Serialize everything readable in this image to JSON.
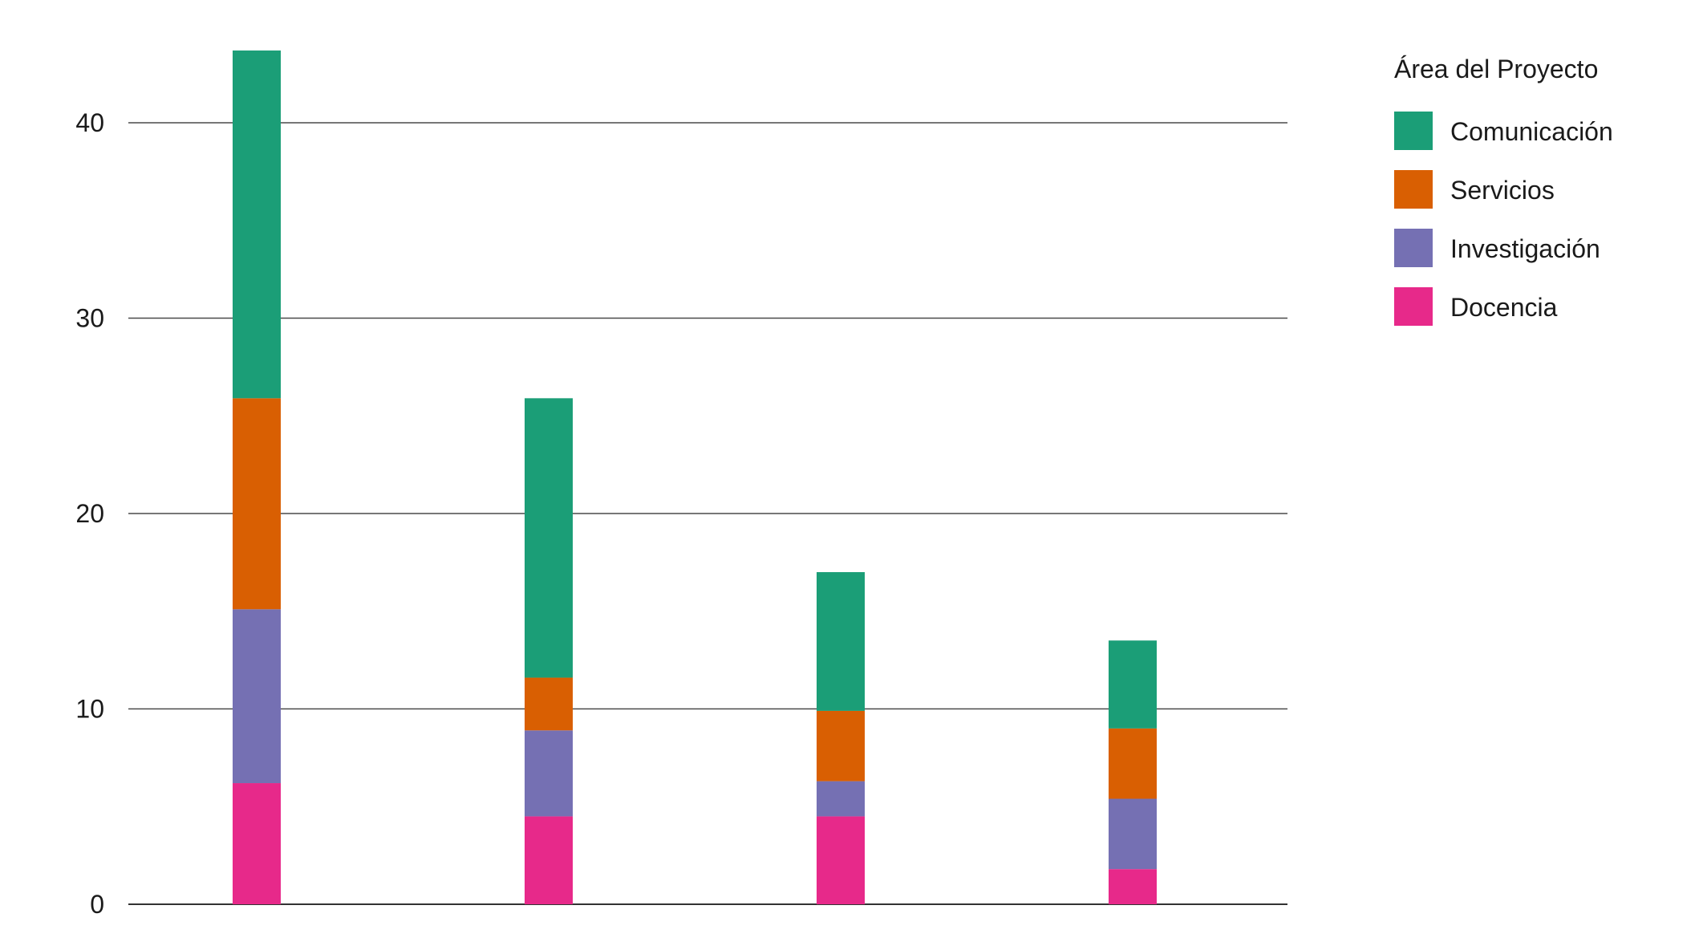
{
  "chart_data": {
    "type": "bar",
    "stacked": true,
    "title": "",
    "xlabel": "",
    "ylabel": "",
    "categories": [
      "",
      "",
      "",
      ""
    ],
    "ylim": [
      0,
      44
    ],
    "yticks": [
      0,
      10,
      20,
      30,
      40
    ],
    "grid": "horizontal",
    "legend": {
      "title": "Área del Proyecto",
      "placement": "right"
    },
    "series": [
      {
        "name": "Docencia",
        "color": "#e7298a",
        "values": [
          6.2,
          4.5,
          4.5,
          1.8
        ]
      },
      {
        "name": "Investigación",
        "color": "#7570b3",
        "values": [
          8.9,
          4.4,
          1.8,
          3.6
        ]
      },
      {
        "name": "Servicios",
        "color": "#d95f02",
        "values": [
          10.8,
          2.7,
          3.6,
          3.6
        ]
      },
      {
        "name": "Comunicación",
        "color": "#1b9e77",
        "values": [
          17.8,
          14.3,
          7.1,
          4.5
        ]
      }
    ]
  }
}
